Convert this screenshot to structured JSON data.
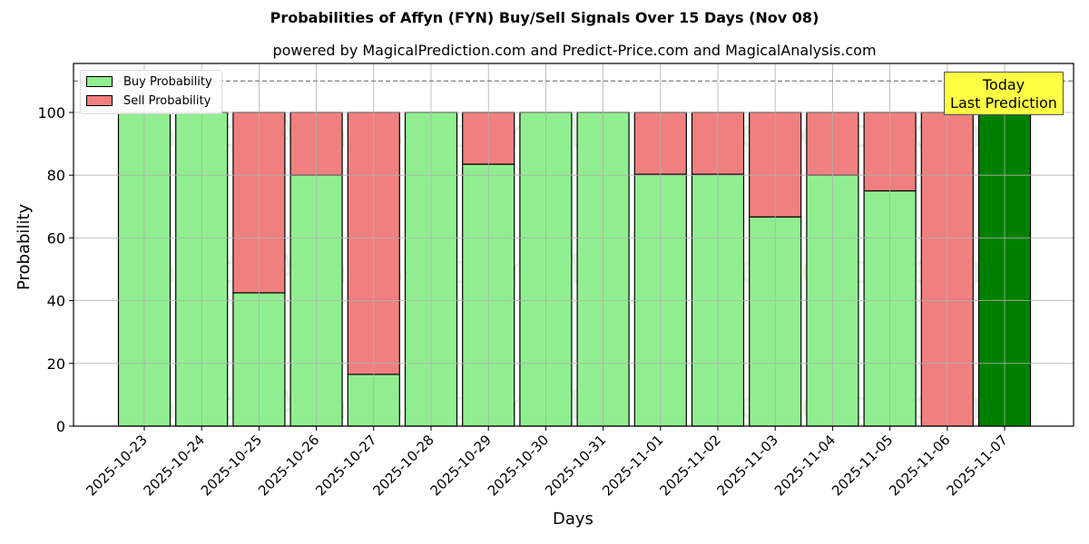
{
  "chart_data": {
    "type": "bar",
    "stacked": true,
    "title": "Probabilities of Affyn (FYN) Buy/Sell Signals Over 15 Days (Nov 08)",
    "subtitle": "powered by MagicalPrediction.com and Predict-Price.com and MagicalAnalysis.com",
    "xlabel": "Days",
    "ylabel": "Probability",
    "ylim": [
      0,
      115
    ],
    "yticks": [
      0,
      20,
      40,
      60,
      80,
      100
    ],
    "grid": true,
    "legend_position": "upper left",
    "reference_line": {
      "y": 110,
      "style": "dashed",
      "color": "#808080"
    },
    "categories": [
      "2025-10-23",
      "2025-10-24",
      "2025-10-25",
      "2025-10-26",
      "2025-10-27",
      "2025-10-28",
      "2025-10-29",
      "2025-10-30",
      "2025-10-31",
      "2025-11-01",
      "2025-11-02",
      "2025-11-03",
      "2025-11-04",
      "2025-11-05",
      "2025-11-06",
      "2025-11-07"
    ],
    "series": [
      {
        "name": "Buy Probability",
        "color": "#90ee90",
        "values": [
          100,
          100,
          42.5,
          80,
          16.5,
          100,
          83.5,
          100,
          100,
          80.3,
          80.3,
          66.7,
          80,
          75,
          0,
          100
        ]
      },
      {
        "name": "Sell Probability",
        "color": "#f08080",
        "values": [
          0,
          0,
          57.5,
          20,
          83.5,
          0,
          16.5,
          0,
          0,
          19.7,
          19.7,
          33.3,
          20,
          25,
          100,
          0
        ]
      }
    ],
    "highlight": {
      "category": "2025-11-07",
      "color": "#008000",
      "label": "Today\nLast Prediction",
      "label_bg": "#ffff44"
    },
    "watermarks": [
      "MagicalAnalysis.com",
      "MagicalPrediction.com"
    ]
  },
  "labels": {
    "title": "Probabilities of Affyn (FYN) Buy/Sell Signals Over 15 Days (Nov 08)",
    "subtitle": "powered by MagicalPrediction.com and Predict-Price.com and MagicalAnalysis.com",
    "xlabel": "Days",
    "ylabel": "Probability",
    "legend_buy": "Buy Probability",
    "legend_sell": "Sell Probability",
    "today_line1": "Today",
    "today_line2": "Last Prediction",
    "watermark_left": "MagicalAnalysis.com",
    "watermark_right": "MagicalPrediction.com"
  }
}
